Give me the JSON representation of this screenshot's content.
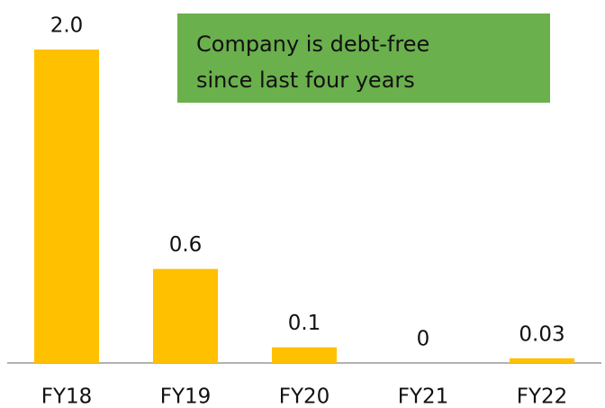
{
  "chart_data": {
    "type": "bar",
    "categories": [
      "FY18",
      "FY19",
      "FY20",
      "FY21",
      "FY22"
    ],
    "values": [
      2.0,
      0.6,
      0.1,
      0,
      0.03
    ],
    "value_labels": [
      "2.0",
      "0.6",
      "0.1",
      "0",
      "0.03"
    ],
    "color": "#ffc000",
    "ylim": [
      0,
      2
    ],
    "annotation": [
      "Company is debt-free",
      "since last four years"
    ],
    "annotation_color": "#6ab04c"
  }
}
